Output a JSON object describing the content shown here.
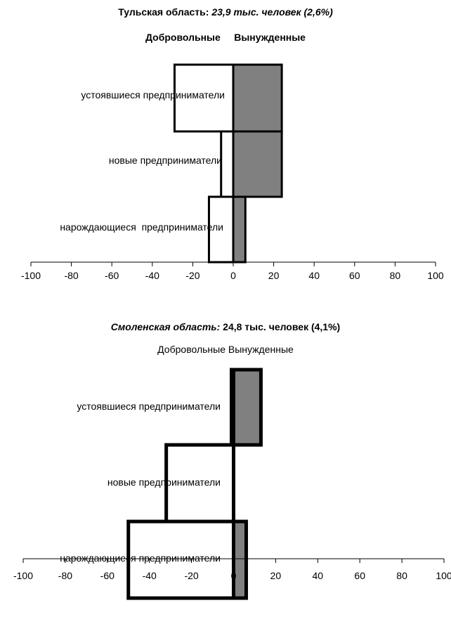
{
  "chart_data": [
    {
      "type": "bar",
      "orientation": "horizontal",
      "title_parts": [
        {
          "text": "Тульская область: ",
          "bold": true,
          "italic": false
        },
        {
          "text": "23,9 тыс. человек (2,6%)",
          "bold": true,
          "italic": true
        }
      ],
      "legend_text": "Добровольные     Вынужденные",
      "legend_bold": true,
      "categories": [
        "устоявшиеся предприниматели",
        "новые предприниматели",
        "нарождающиеся  предприниматели"
      ],
      "series": [
        {
          "name": "Добровольные",
          "values": [
            -29,
            -6,
            -12
          ],
          "color": "#ffffff"
        },
        {
          "name": "Вынужденные",
          "values": [
            24,
            24,
            6
          ],
          "color": "#808080"
        }
      ],
      "x_ticks": [
        -100,
        -80,
        -60,
        -40,
        -20,
        0,
        20,
        40,
        60,
        80,
        100
      ],
      "xlim": [
        -100,
        100
      ]
    },
    {
      "type": "bar",
      "orientation": "horizontal",
      "title_parts": [
        {
          "text": "Смоленская область: ",
          "bold": true,
          "italic": true
        },
        {
          "text": "24,8 тыс. человек (4,1%)",
          "bold": true,
          "italic": false
        }
      ],
      "legend_text": "Добровольные Вынужденные",
      "legend_bold": false,
      "categories": [
        "устоявшиеся предприниматели",
        "новые предприниматели",
        "нарождающиеся предприниматели"
      ],
      "series": [
        {
          "name": "Добровольные",
          "values": [
            -1,
            -32,
            -50
          ],
          "color": "#ffffff"
        },
        {
          "name": "Вынужденные",
          "values": [
            13,
            0,
            6
          ],
          "color": "#808080"
        }
      ],
      "x_ticks": [
        -100,
        -80,
        -60,
        -40,
        -20,
        0,
        20,
        40,
        60,
        80,
        100
      ],
      "xlim": [
        -100,
        100
      ]
    }
  ],
  "colors": {
    "forced": "#808080",
    "voluntary": "#ffffff",
    "stroke": "#000000"
  }
}
